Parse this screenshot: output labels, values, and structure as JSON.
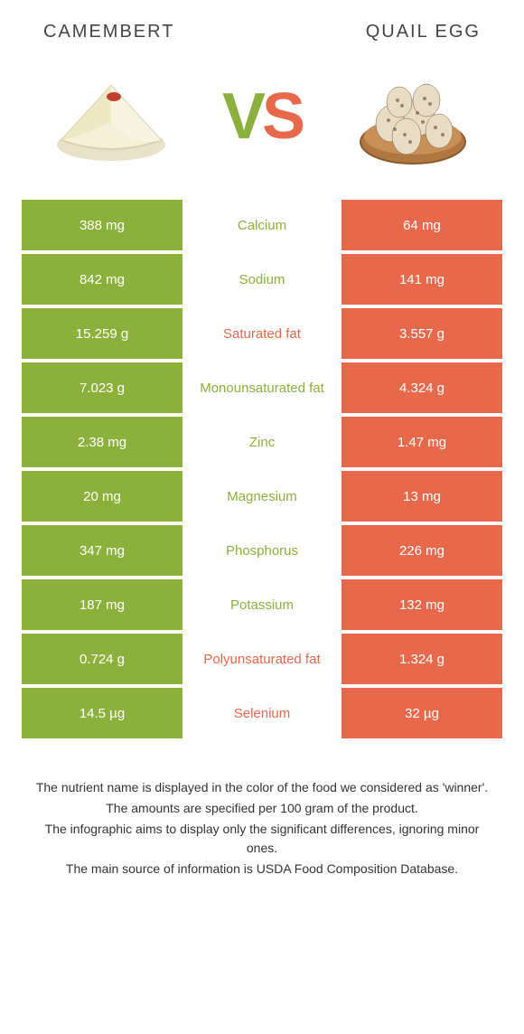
{
  "colors": {
    "left_bg": "#8bb03b",
    "right_bg": "#e7684a",
    "left_text": "#8bb03b",
    "right_text": "#e7684a",
    "row_gap": "#ffffff"
  },
  "header": {
    "left_title": "CAMEMBERT",
    "right_title": "Quail egg",
    "vs_v": "V",
    "vs_s": "S"
  },
  "table": {
    "rows": [
      {
        "left": "388 mg",
        "label": "Calcium",
        "right": "64 mg",
        "winner": "left"
      },
      {
        "left": "842 mg",
        "label": "Sodium",
        "right": "141 mg",
        "winner": "left"
      },
      {
        "left": "15.259 g",
        "label": "Saturated fat",
        "right": "3.557 g",
        "winner": "right"
      },
      {
        "left": "7.023 g",
        "label": "Monounsaturated fat",
        "right": "4.324 g",
        "winner": "left"
      },
      {
        "left": "2.38 mg",
        "label": "Zinc",
        "right": "1.47 mg",
        "winner": "left"
      },
      {
        "left": "20 mg",
        "label": "Magnesium",
        "right": "13 mg",
        "winner": "left"
      },
      {
        "left": "347 mg",
        "label": "Phosphorus",
        "right": "226 mg",
        "winner": "left"
      },
      {
        "left": "187 mg",
        "label": "Potassium",
        "right": "132 mg",
        "winner": "left"
      },
      {
        "left": "0.724 g",
        "label": "Polyunsaturated fat",
        "right": "1.324 g",
        "winner": "right"
      },
      {
        "left": "14.5 µg",
        "label": "Selenium",
        "right": "32 µg",
        "winner": "right"
      }
    ]
  },
  "footnotes": {
    "line1": "The nutrient name is displayed in the color of the food we considered as 'winner'.",
    "line2": "The amounts are specified per 100 gram of the product.",
    "line3": "The infographic aims to display only the significant differences, ignoring minor ones.",
    "line4": "The main source of information is USDA Food Composition Database."
  }
}
